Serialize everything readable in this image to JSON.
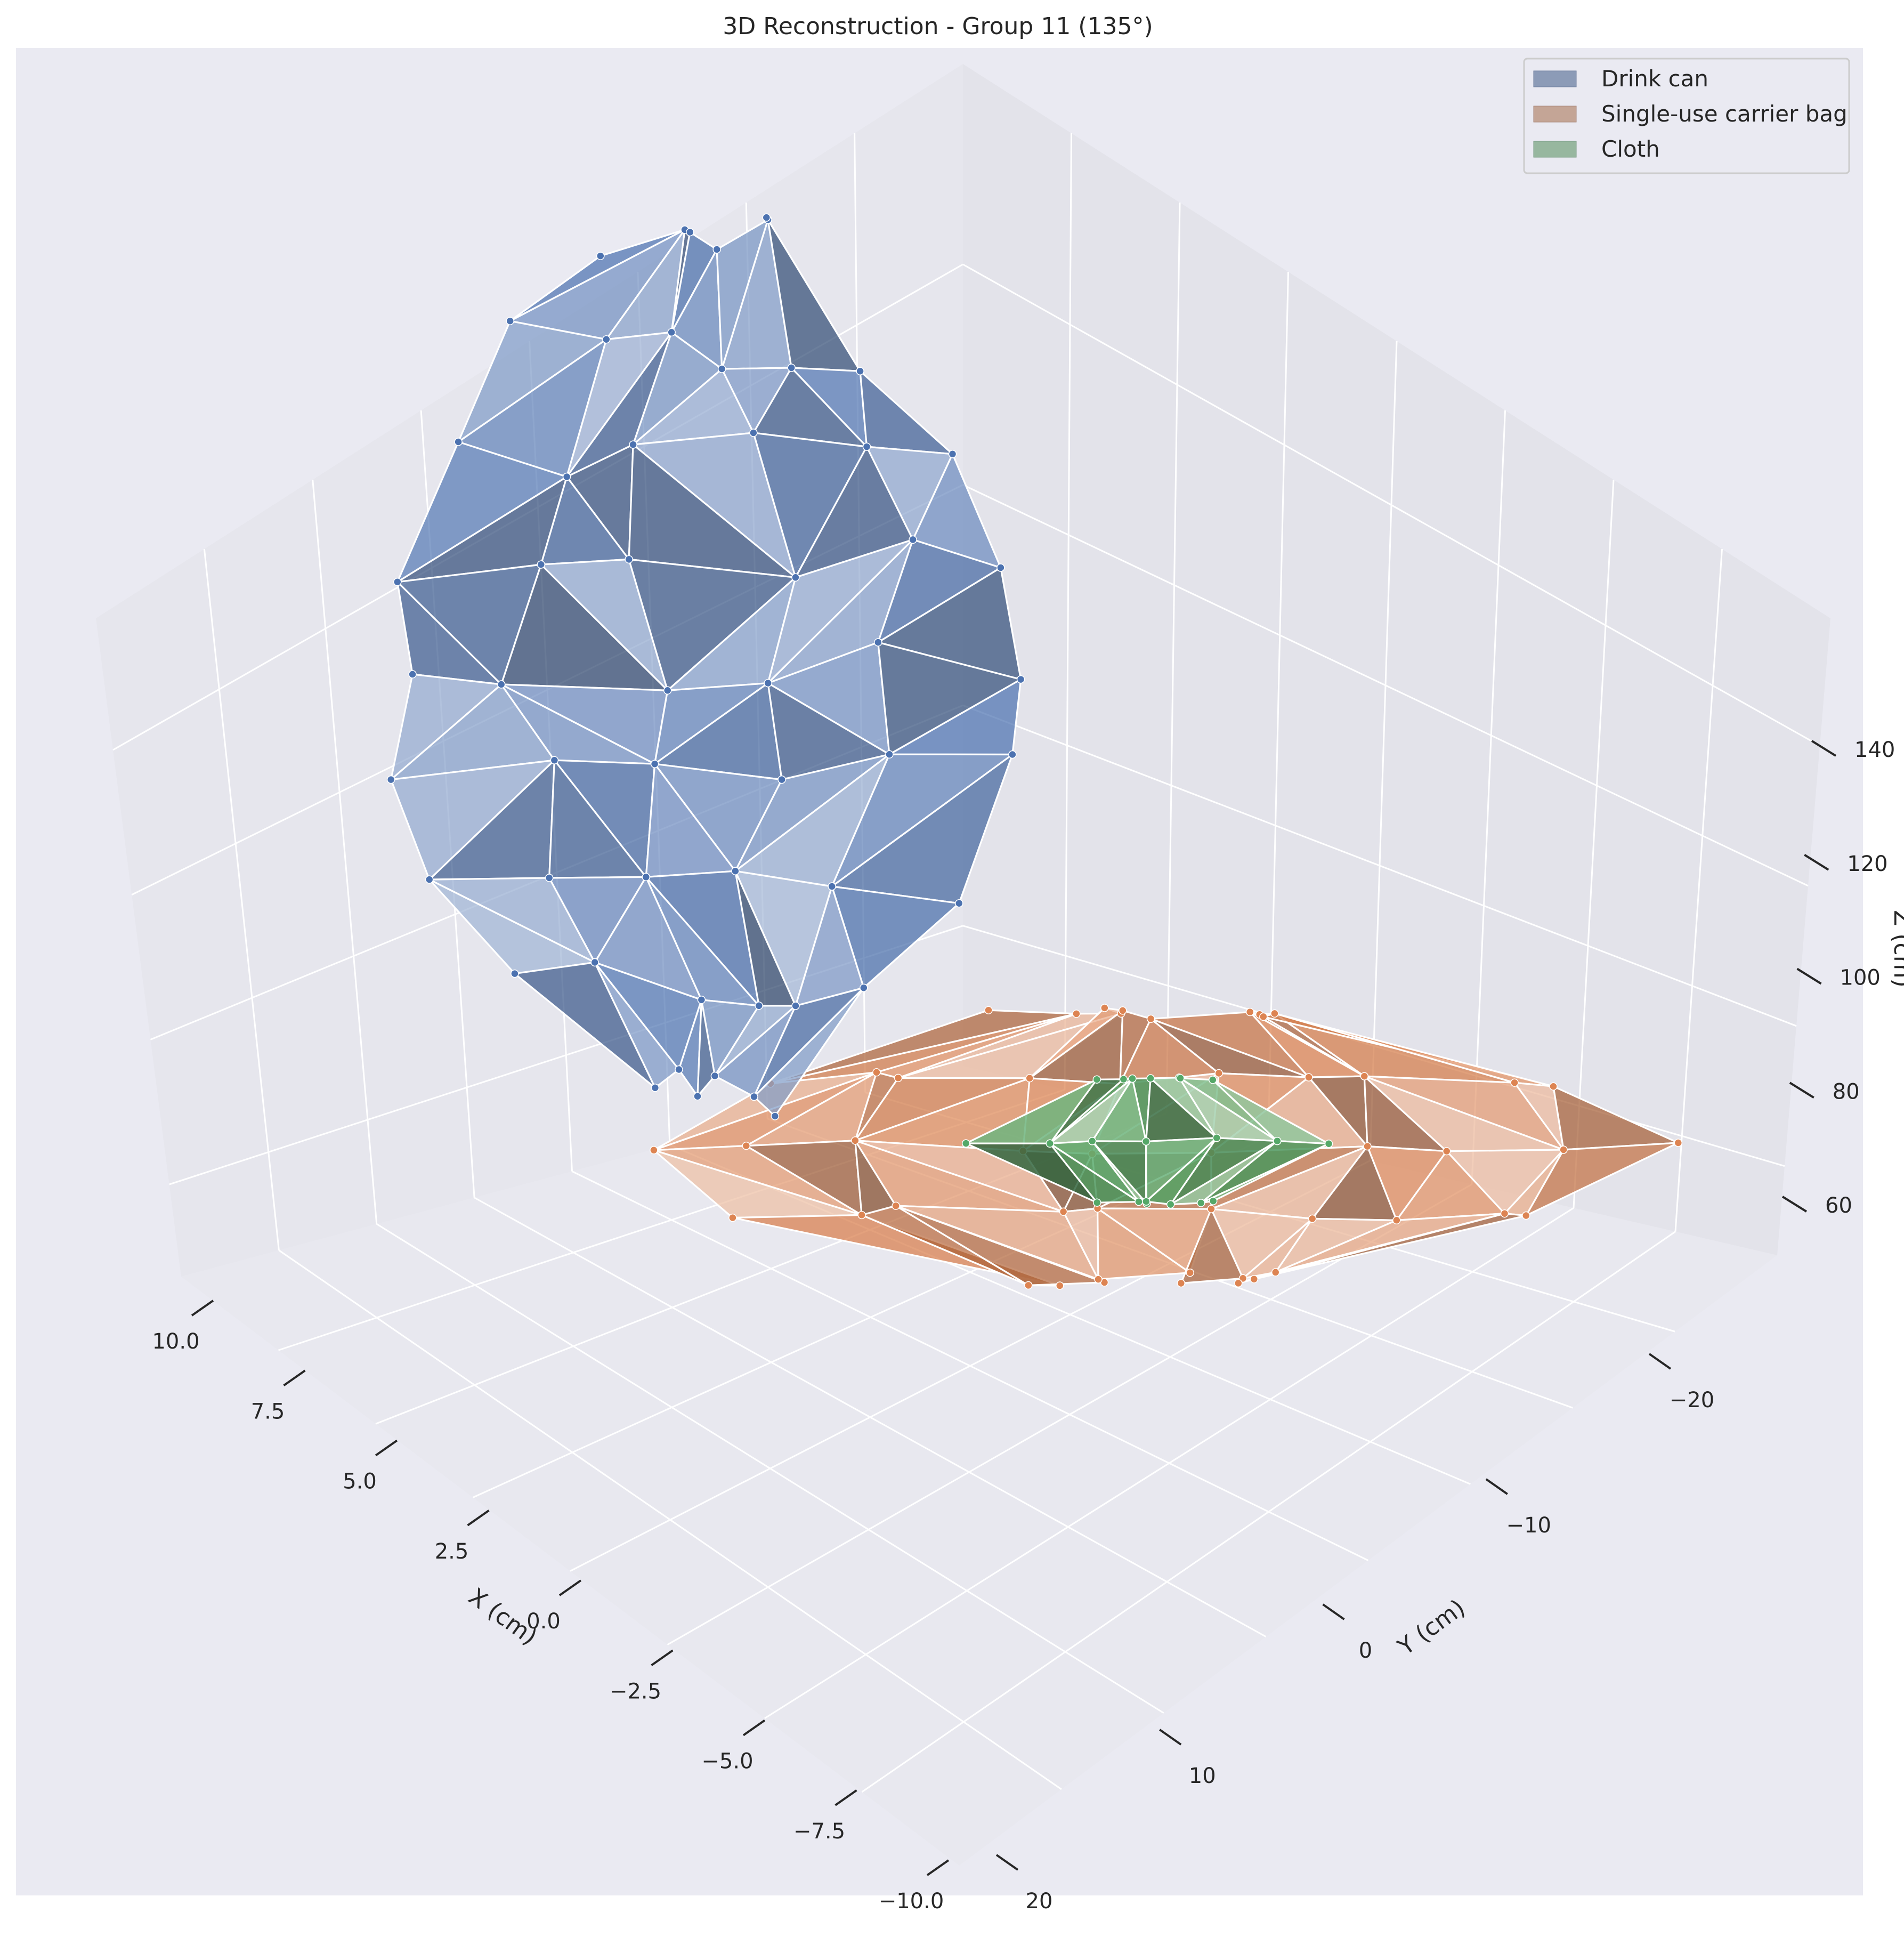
{
  "chart_data": {
    "type": "3d-mesh",
    "title": "3D Reconstruction - Group 11 (135°)",
    "xlabel": "X (cm)",
    "ylabel": "Y (cm)",
    "zlabel": "Z (cm)",
    "x_ticks": [
      "10.0",
      "7.5",
      "5.0",
      "2.5",
      "0.0",
      "−2.5",
      "−5.0",
      "−7.5",
      "−10.0"
    ],
    "y_ticks": [
      "−20",
      "−10",
      "0",
      "10",
      "20"
    ],
    "z_ticks": [
      "60",
      "80",
      "100",
      "120",
      "140"
    ],
    "xlim": [
      -10,
      10
    ],
    "ylim": [
      -20,
      20
    ],
    "zlim": [
      55,
      145
    ],
    "view_azimuth_deg": 135,
    "grid": true,
    "legend_position": "top-right",
    "series": [
      {
        "name": "Drink can",
        "color": "#4c72b0",
        "legend_color": "#8c9bb7"
      },
      {
        "name": "Single-use carrier bag",
        "color": "#dd8452",
        "legend_color": "#c4a596"
      },
      {
        "name": "Cloth",
        "color": "#55a868",
        "legend_color": "#97b79f"
      }
    ]
  }
}
